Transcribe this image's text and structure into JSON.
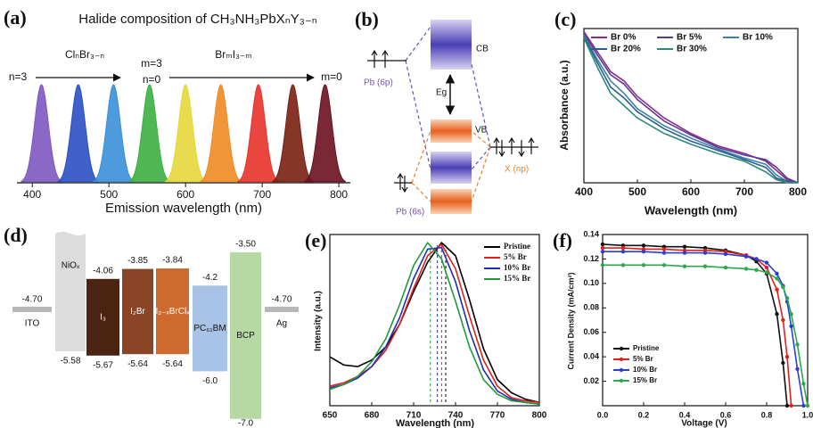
{
  "chart_data": [
    {
      "type": "emission",
      "label": "(a)",
      "title": "Halide composition of CH₃NH₃PbXₙY₃₋ₙ",
      "annotations": [
        "n=3",
        "ClₙBr₃₋ₙ",
        "m=3",
        "n=0",
        "BrₘI₃₋ₘ",
        "m=0"
      ],
      "x_label": "Emission wavelength (nm)",
      "peaks": [
        412,
        460,
        506,
        553,
        600,
        646,
        695,
        740,
        782
      ],
      "colors": [
        "#7e57c2",
        "#2b4fc4",
        "#3a8fd8",
        "#3cb043",
        "#e6d73a",
        "#f08a24",
        "#e8322b",
        "#7a1f12",
        "#6b1020"
      ],
      "xlim": [
        380,
        815
      ],
      "xticks": [
        400,
        500,
        600,
        700,
        800
      ]
    },
    {
      "type": "line",
      "label": "(c)",
      "x_label": "Wavelength (nm)",
      "y_label": "Absorbance (a.u.)",
      "x": [
        400,
        425,
        450,
        475,
        500,
        550,
        600,
        650,
        700,
        740,
        760,
        780,
        800
      ],
      "series": [
        {
          "name": "Br 0%",
          "color": "#8e2a8e",
          "values": [
            0.98,
            0.85,
            0.72,
            0.66,
            0.56,
            0.42,
            0.32,
            0.24,
            0.19,
            0.14,
            0.08,
            0.02,
            0.0
          ]
        },
        {
          "name": "Br 5%",
          "color": "#5b3a8f",
          "values": [
            0.97,
            0.83,
            0.7,
            0.64,
            0.54,
            0.4,
            0.31,
            0.23,
            0.18,
            0.15,
            0.1,
            0.03,
            0.0
          ]
        },
        {
          "name": "Br 10%",
          "color": "#3a7fb0",
          "values": [
            0.96,
            0.8,
            0.66,
            0.58,
            0.48,
            0.37,
            0.29,
            0.22,
            0.16,
            0.12,
            0.05,
            0.01,
            0.0
          ]
        },
        {
          "name": "Br 20%",
          "color": "#2c5f8e",
          "values": [
            0.95,
            0.78,
            0.62,
            0.55,
            0.46,
            0.35,
            0.27,
            0.21,
            0.15,
            0.1,
            0.03,
            0.01,
            0.0
          ]
        },
        {
          "name": "Br 30%",
          "color": "#2a8a7a",
          "values": [
            0.94,
            0.75,
            0.58,
            0.5,
            0.42,
            0.32,
            0.25,
            0.19,
            0.14,
            0.07,
            0.02,
            0.0,
            0.0
          ]
        }
      ],
      "xlim": [
        400,
        800
      ],
      "xticks": [
        400,
        500,
        600,
        700,
        800
      ],
      "ylim": [
        0,
        1
      ],
      "legend": "upper center"
    },
    {
      "type": "line",
      "label": "(e)",
      "x_label": "Wavelength (nm)",
      "y_label": "Intensity (a.u.)",
      "x": [
        650,
        660,
        670,
        680,
        690,
        700,
        710,
        720,
        730,
        740,
        750,
        760,
        770,
        780,
        790,
        800
      ],
      "series": [
        {
          "name": "Pristine",
          "color": "#000000",
          "peak": 733,
          "values": [
            0.3,
            0.25,
            0.24,
            0.28,
            0.36,
            0.5,
            0.7,
            0.88,
            1.0,
            0.92,
            0.65,
            0.35,
            0.16,
            0.08,
            0.04,
            0.02
          ]
        },
        {
          "name": "5% Br",
          "color": "#e0201b",
          "peak": 730,
          "values": [
            0.12,
            0.14,
            0.18,
            0.24,
            0.34,
            0.5,
            0.72,
            0.92,
            0.99,
            0.84,
            0.55,
            0.28,
            0.12,
            0.05,
            0.03,
            0.02
          ]
        },
        {
          "name": "10% Br",
          "color": "#1f2fb0",
          "peak": 727,
          "values": [
            0.11,
            0.13,
            0.17,
            0.24,
            0.36,
            0.54,
            0.78,
            0.96,
            0.97,
            0.76,
            0.46,
            0.22,
            0.09,
            0.04,
            0.02,
            0.01
          ]
        },
        {
          "name": "15% Br",
          "color": "#1f9a3a",
          "peak": 722,
          "values": [
            0.1,
            0.13,
            0.18,
            0.27,
            0.41,
            0.62,
            0.86,
            1.0,
            0.9,
            0.64,
            0.36,
            0.16,
            0.07,
            0.03,
            0.02,
            0.01
          ]
        }
      ],
      "xlim": [
        650,
        800
      ],
      "xticks": [
        650,
        680,
        710,
        740,
        770,
        800
      ],
      "ylim": [
        0,
        1.05
      ],
      "legend": "upper right"
    },
    {
      "type": "line",
      "label": "(f)",
      "x_label": "Voltage (V)",
      "y_label": "Current Density (mA/cm²)",
      "markers": true,
      "x": [
        0,
        0.1,
        0.2,
        0.3,
        0.4,
        0.5,
        0.6,
        0.7,
        0.75,
        0.8,
        0.85,
        0.88,
        0.9,
        0.92,
        0.95,
        0.98,
        1.0
      ],
      "series": [
        {
          "name": "Pristine",
          "color": "#111111",
          "values": [
            0.132,
            0.131,
            0.131,
            0.13,
            0.13,
            0.129,
            0.127,
            0.123,
            0.118,
            0.108,
            0.075,
            0.035,
            0.0,
            null,
            null,
            null,
            null
          ]
        },
        {
          "name": "5% Br",
          "color": "#e0201b",
          "values": [
            0.129,
            0.129,
            0.128,
            0.128,
            0.127,
            0.127,
            0.126,
            0.123,
            0.12,
            0.113,
            0.095,
            0.07,
            0.04,
            0.0,
            null,
            null,
            null
          ]
        },
        {
          "name": "10% Br",
          "color": "#2a3fd0",
          "values": [
            0.126,
            0.126,
            0.126,
            0.125,
            0.125,
            0.125,
            0.124,
            0.122,
            0.12,
            0.117,
            0.108,
            0.098,
            0.085,
            0.065,
            0.03,
            0.0,
            null
          ]
        },
        {
          "name": "15% Br",
          "color": "#2aa84a",
          "values": [
            0.115,
            0.115,
            0.115,
            0.115,
            0.114,
            0.114,
            0.113,
            0.112,
            0.111,
            0.109,
            0.104,
            0.097,
            0.088,
            0.075,
            0.05,
            0.018,
            0.0
          ]
        }
      ],
      "xlim": [
        0,
        1.0
      ],
      "xticks": [
        {
          "value": 0,
          "label": "0.0"
        },
        0.2,
        0.4,
        0.6,
        0.8,
        {
          "value": 1,
          "label": "1.0"
        }
      ],
      "ylim": [
        0,
        0.14
      ],
      "yticks": [
        0.02,
        0.04,
        0.06,
        0.08,
        {
          "value": 0.1,
          "label": "0.10"
        },
        0.12,
        0.14
      ],
      "legend": "lower left"
    }
  ],
  "band_diagram": {
    "label": "(b)",
    "cb": "CB",
    "vb": "VB",
    "gap": "Eg",
    "pb6p": "Pb (6p)",
    "pb6s": "Pb (6s)",
    "xnp": "X (np)"
  },
  "energy_diagram": {
    "label": "(d)",
    "layers": [
      {
        "name": "ITO",
        "level": "-4.70",
        "color": "#b8b8b8"
      },
      {
        "name": "NiOₓ",
        "bottom": "-5.58",
        "color": "#dcdcdc"
      },
      {
        "name": "I₃",
        "top": "-4.06",
        "bottom": "-5.67",
        "color": "#4a2410"
      },
      {
        "name": "I₂Br",
        "top": "-3.85",
        "bottom": "-5.64",
        "color": "#8a4526"
      },
      {
        "name": "I₂₋ₓBrClₓ",
        "top": "-3.84",
        "bottom": "-5.64",
        "color": "#cf6a2e"
      },
      {
        "name": "PC₆₁BM",
        "top": "-4.2",
        "bottom": "-6.0",
        "color": "#a9c3e6"
      },
      {
        "name": "BCP",
        "top": "-3.50",
        "bottom": "-7.0",
        "color": "#b6d9a4"
      },
      {
        "name": "Ag",
        "level": "-4.70",
        "color": "#b8b8b8"
      }
    ]
  }
}
